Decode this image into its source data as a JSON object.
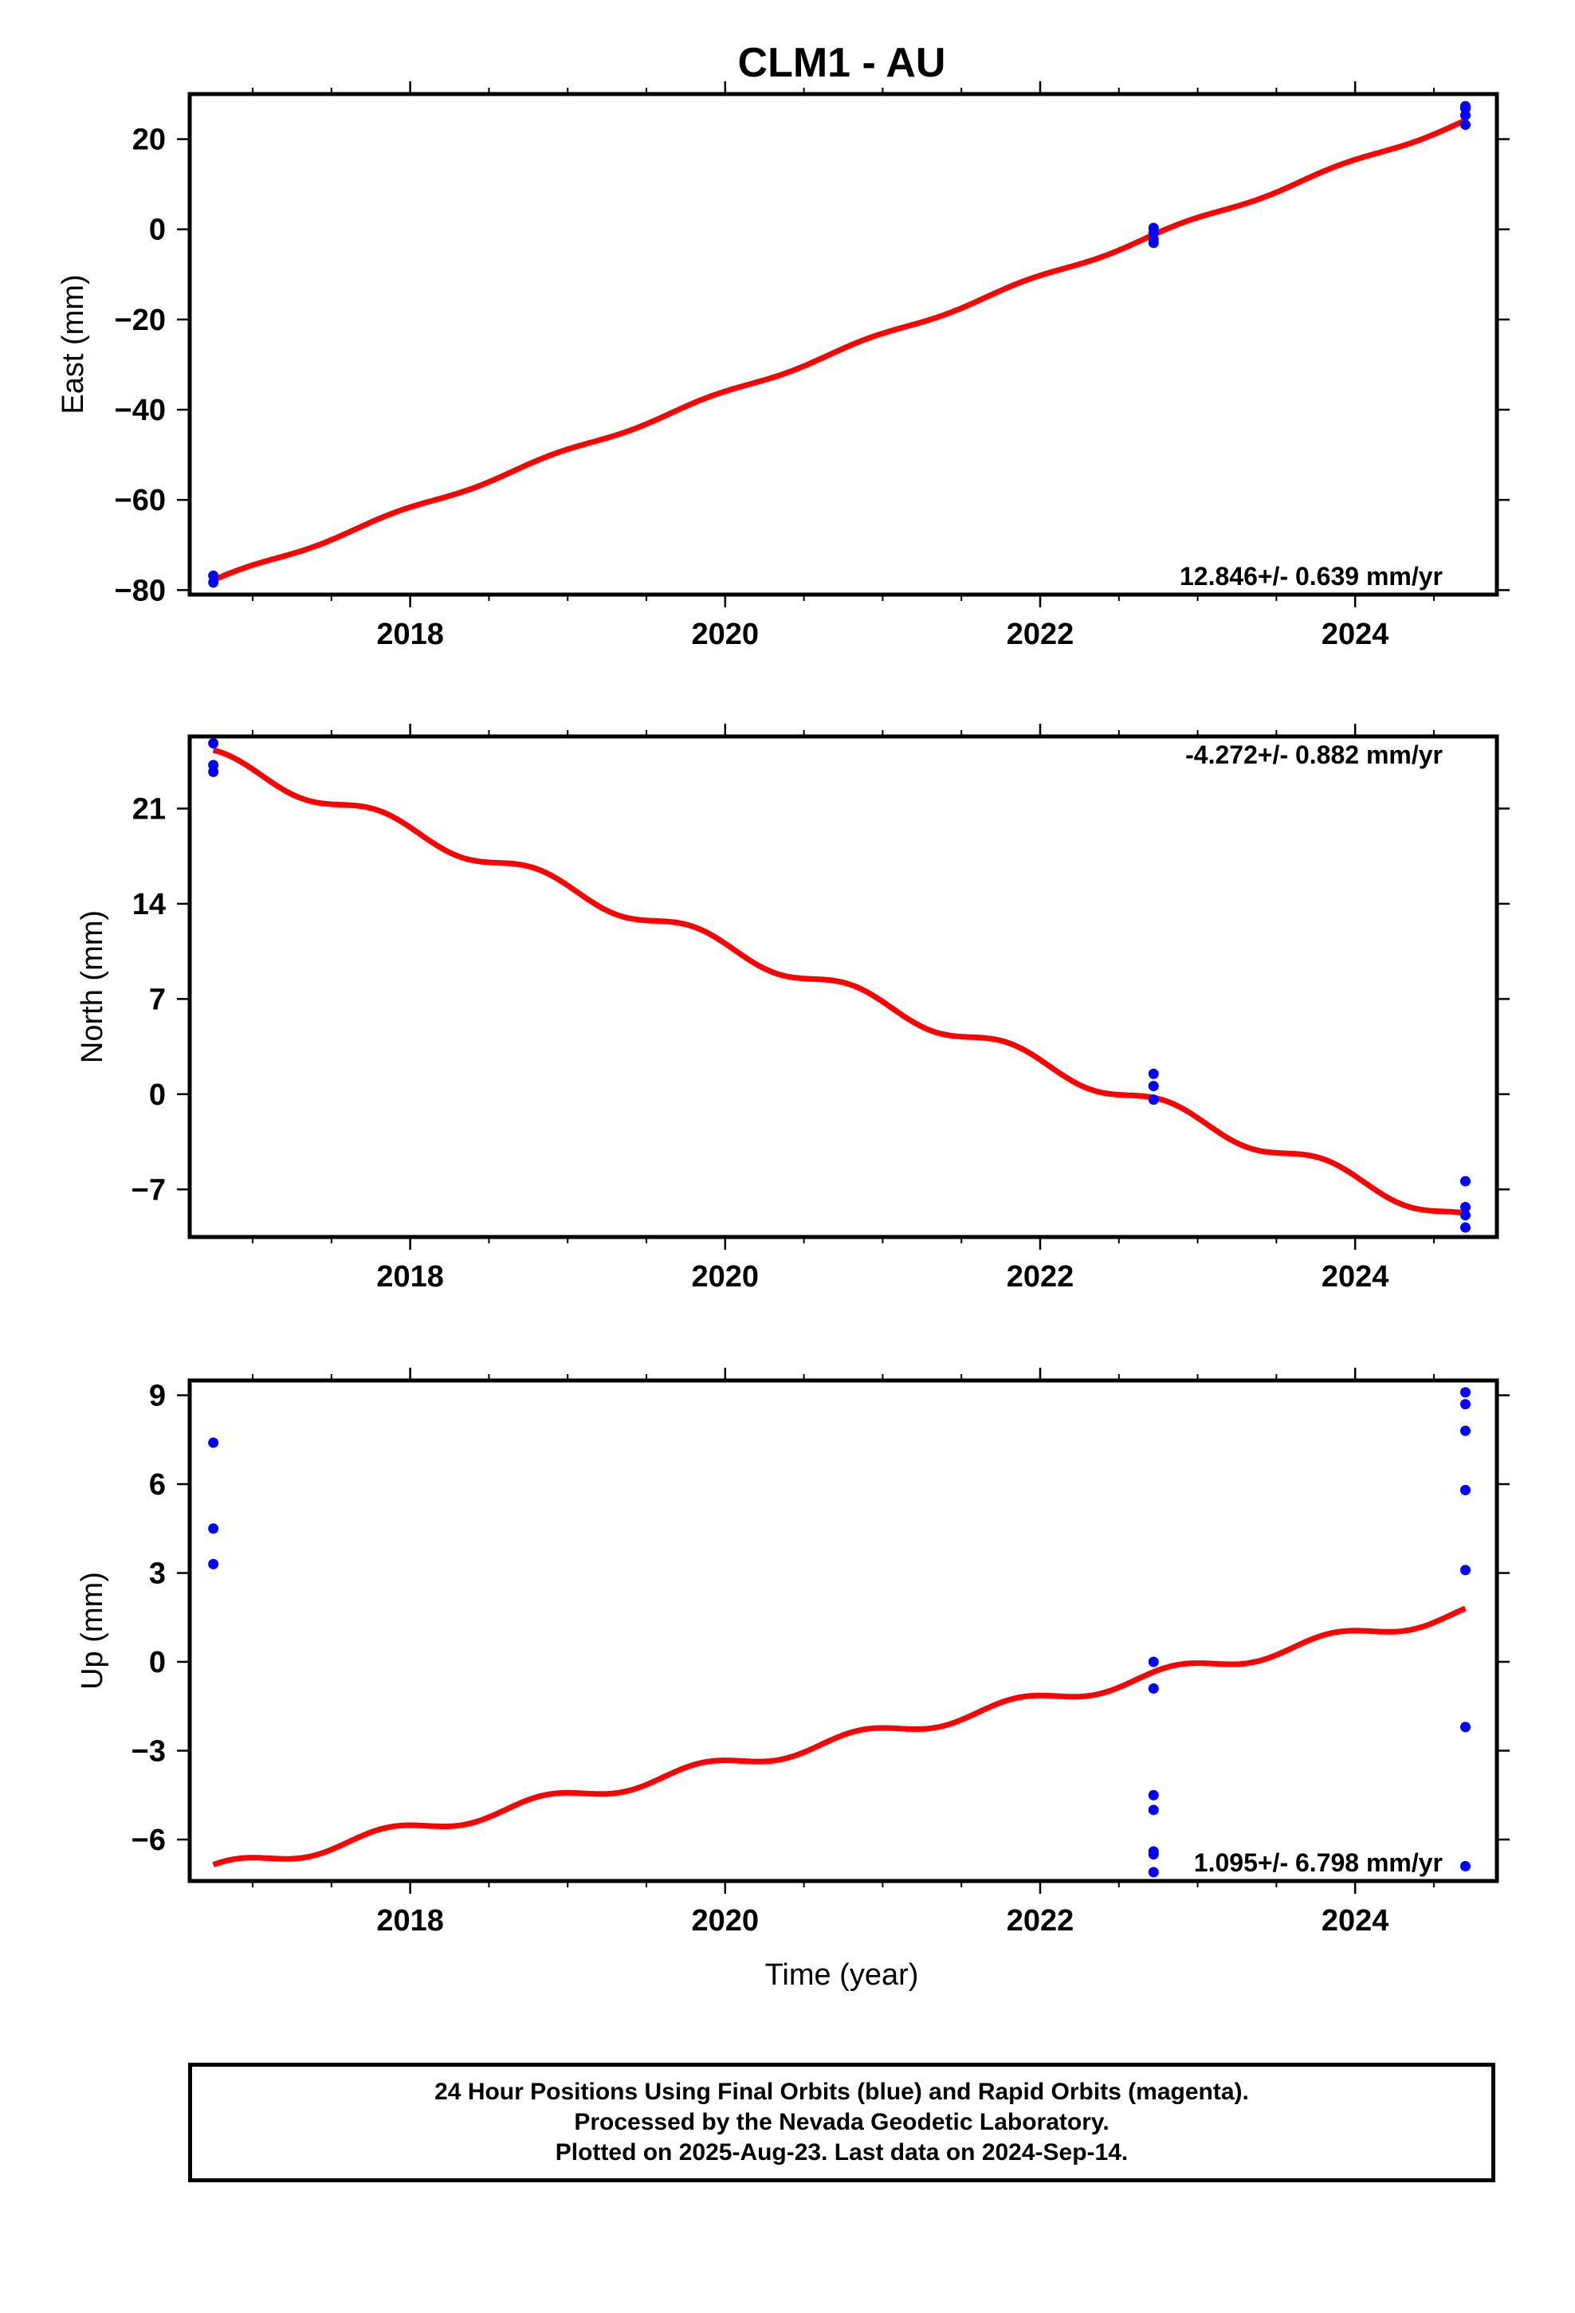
{
  "title": "CLM1 - AU",
  "xlabel": "Time (year)",
  "footer": {
    "line1": "24 Hour Positions Using Final Orbits (blue) and Rapid Orbits (magenta).",
    "line2": "Processed by the Nevada Geodetic Laboratory.",
    "line3": "Plotted on 2025-Aug-23. Last data on 2024-Sep-14."
  },
  "colors": {
    "points": "#0000ff",
    "fit": "#ff0000",
    "axes": "#000000"
  },
  "chart_data": [
    {
      "type": "scatter",
      "component": "east",
      "ylabel": "East (mm)",
      "xlim": [
        2016.6,
        2024.9
      ],
      "ylim": [
        -81,
        30
      ],
      "xticks": [
        2018,
        2020,
        2022,
        2024
      ],
      "yticks": [
        -80,
        -60,
        -40,
        -20,
        0,
        20
      ],
      "ytick_labels": [
        "−80",
        "−60",
        "−40",
        "−20",
        "0",
        "20"
      ],
      "rate_label": "12.846+/- 0.639 mm/yr",
      "rate_label_position": "bottom-right",
      "points": [
        {
          "x": 2016.75,
          "y": -76.8
        },
        {
          "x": 2016.75,
          "y": -78.3
        },
        {
          "x": 2022.72,
          "y": 0.3
        },
        {
          "x": 2022.72,
          "y": -0.8
        },
        {
          "x": 2022.72,
          "y": -2.2
        },
        {
          "x": 2022.72,
          "y": -3.0
        },
        {
          "x": 2024.7,
          "y": 27.3
        },
        {
          "x": 2024.7,
          "y": 26.8
        },
        {
          "x": 2024.7,
          "y": 25.3
        },
        {
          "x": 2024.7,
          "y": 23.2
        }
      ],
      "fit": {
        "start_x": 2016.75,
        "start_y": -77.8,
        "slope": 12.846,
        "seasonal_amplitude": 0.5,
        "seasonal_phase": 0.6
      }
    },
    {
      "type": "scatter",
      "component": "north",
      "ylabel": "North (mm)",
      "xlim": [
        2016.6,
        2024.9
      ],
      "ylim": [
        -10.5,
        26.3
      ],
      "xticks": [
        2018,
        2020,
        2022,
        2024
      ],
      "yticks": [
        -7,
        0,
        7,
        14,
        21
      ],
      "ytick_labels": [
        "−7",
        "0",
        "7",
        "14",
        "21"
      ],
      "rate_label": "-4.272+/- 0.882 mm/yr",
      "rate_label_position": "top-right",
      "points": [
        {
          "x": 2016.75,
          "y": 25.8
        },
        {
          "x": 2016.75,
          "y": 24.2
        },
        {
          "x": 2016.75,
          "y": 23.7
        },
        {
          "x": 2022.72,
          "y": 1.5
        },
        {
          "x": 2022.72,
          "y": 0.6
        },
        {
          "x": 2022.72,
          "y": -0.4
        },
        {
          "x": 2024.7,
          "y": -6.4
        },
        {
          "x": 2024.7,
          "y": -8.3
        },
        {
          "x": 2024.7,
          "y": -8.9
        },
        {
          "x": 2024.7,
          "y": -9.8
        }
      ],
      "fit": {
        "start_x": 2016.75,
        "start_y": 25.3,
        "slope": -4.272,
        "seasonal_amplitude": 0.6,
        "seasonal_phase": 1.2
      }
    },
    {
      "type": "scatter",
      "component": "up",
      "ylabel": "Up (mm)",
      "xlim": [
        2016.6,
        2024.9
      ],
      "ylim": [
        -7.4,
        9.5
      ],
      "xticks": [
        2018,
        2020,
        2022,
        2024
      ],
      "yticks": [
        -6,
        -3,
        0,
        3,
        6,
        9
      ],
      "ytick_labels": [
        "−6",
        "−3",
        "0",
        "3",
        "6",
        "9"
      ],
      "rate_label": "1.095+/- 6.798 mm/yr",
      "rate_label_position": "bottom-right",
      "points": [
        {
          "x": 2016.75,
          "y": 7.4
        },
        {
          "x": 2016.75,
          "y": 4.5
        },
        {
          "x": 2016.75,
          "y": 3.3
        },
        {
          "x": 2022.72,
          "y": 0.0
        },
        {
          "x": 2022.72,
          "y": -0.9
        },
        {
          "x": 2022.72,
          "y": -4.5
        },
        {
          "x": 2022.72,
          "y": -5.0
        },
        {
          "x": 2022.72,
          "y": -6.4
        },
        {
          "x": 2022.72,
          "y": -6.5
        },
        {
          "x": 2022.72,
          "y": -7.1
        },
        {
          "x": 2024.7,
          "y": 9.1
        },
        {
          "x": 2024.7,
          "y": 8.7
        },
        {
          "x": 2024.7,
          "y": 7.8
        },
        {
          "x": 2024.7,
          "y": 5.8
        },
        {
          "x": 2024.7,
          "y": 3.1
        },
        {
          "x": 2024.7,
          "y": -2.2
        },
        {
          "x": 2024.7,
          "y": -6.9
        }
      ],
      "fit": {
        "start_x": 2016.75,
        "start_y": -6.85,
        "slope": 1.095,
        "seasonal_amplitude": 0.22,
        "seasonal_phase": 0.9
      }
    }
  ]
}
